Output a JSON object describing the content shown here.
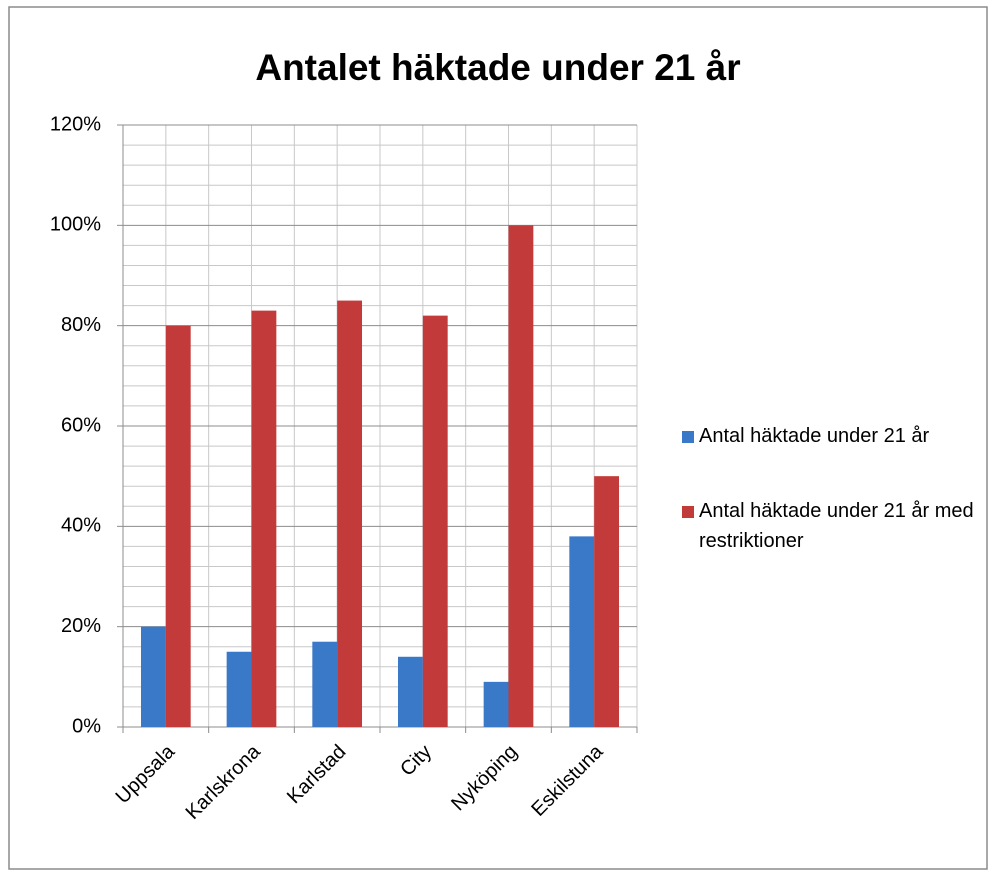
{
  "chart_data": {
    "type": "bar",
    "title": "Antalet häktade under 21 år",
    "categories": [
      "Uppsala",
      "Karlskrona",
      "Karlstad",
      "City",
      "Nyköping",
      "Eskilstuna"
    ],
    "series": [
      {
        "name": "Antal häktade under 21 år",
        "color": "#3a78c8",
        "values": [
          20,
          15,
          17,
          14,
          9,
          38
        ]
      },
      {
        "name": "Antal häktade under 21 år med restriktioner",
        "color": "#c23b3a",
        "values": [
          80,
          83,
          85,
          82,
          100,
          50
        ]
      }
    ],
    "ylim": [
      0,
      120
    ],
    "yticks": [
      {
        "value": 0,
        "label": "0%"
      },
      {
        "value": 20,
        "label": "20%"
      },
      {
        "value": 40,
        "label": "40%"
      },
      {
        "value": 60,
        "label": "60%"
      },
      {
        "value": 80,
        "label": "80%"
      },
      {
        "value": 100,
        "label": "100%"
      },
      {
        "value": 120,
        "label": "120%"
      }
    ],
    "grid": true,
    "minor_grid": true,
    "legend": "right"
  }
}
